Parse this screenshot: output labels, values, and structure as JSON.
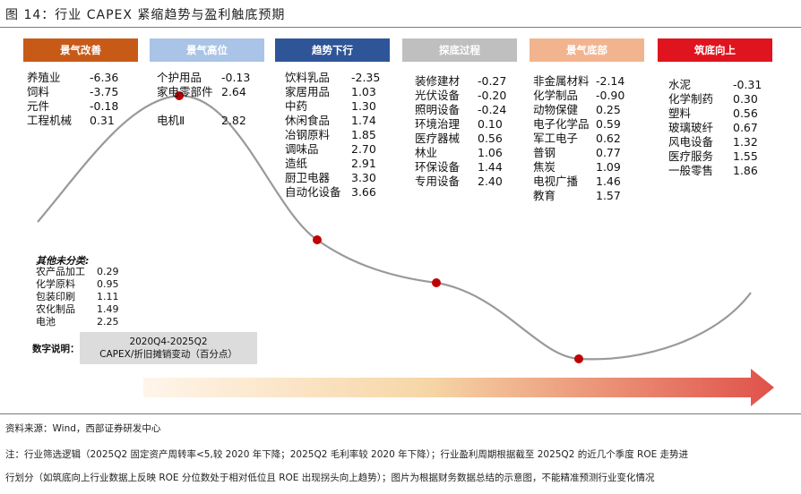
{
  "title": "图 14：行业 CAPEX 紧缩趋势与盈利触底预期",
  "phases": [
    {
      "label": "景气改善",
      "color": "#c85a17"
    },
    {
      "label": "景气高位",
      "color": "#a9c4e6"
    },
    {
      "label": "趋势下行",
      "color": "#2e5597"
    },
    {
      "label": "探底过程",
      "color": "#bfbfbf"
    },
    {
      "label": "景气底部",
      "color": "#f2b48f"
    },
    {
      "label": "筑底向上",
      "color": "#e0141e"
    }
  ],
  "columns": [
    {
      "items": [
        [
          "养殖业",
          "-6.36"
        ],
        [
          "饲料",
          "-3.75"
        ],
        [
          "元件",
          "-0.18"
        ],
        [
          "工程机械",
          "0.31"
        ]
      ]
    },
    {
      "items": [
        [
          "个护用品",
          "-0.13"
        ],
        [
          "家电零部件",
          "2.64"
        ],
        [
          "",
          ""
        ],
        [
          "电机Ⅱ",
          "2.82"
        ]
      ]
    },
    {
      "items": [
        [
          "饮料乳品",
          "-2.35"
        ],
        [
          "家居用品",
          "1.03"
        ],
        [
          "中药",
          "1.30"
        ],
        [
          "休闲食品",
          "1.74"
        ],
        [
          "冶钢原料",
          "1.85"
        ],
        [
          "调味品",
          "2.70"
        ],
        [
          "造纸",
          "2.91"
        ],
        [
          "厨卫电器",
          "3.30"
        ],
        [
          "自动化设备",
          "3.66"
        ]
      ]
    },
    {
      "items": [
        [
          "装修建材",
          "-0.27"
        ],
        [
          "光伏设备",
          "-0.20"
        ],
        [
          "照明设备",
          "-0.24"
        ],
        [
          "环境治理",
          "0.10"
        ],
        [
          "医疗器械",
          "0.56"
        ],
        [
          "林业",
          "1.06"
        ],
        [
          "环保设备",
          "1.44"
        ],
        [
          "专用设备",
          "2.40"
        ]
      ]
    },
    {
      "items": [
        [
          "非金属材料",
          "-2.14"
        ],
        [
          "化学制品",
          "-0.90"
        ],
        [
          "动物保健",
          "0.25"
        ],
        [
          "电子化学品",
          "0.59"
        ],
        [
          "军工电子",
          "0.62"
        ],
        [
          "普钢",
          "0.77"
        ],
        [
          "焦炭",
          "1.09"
        ],
        [
          "电视广播",
          "1.46"
        ],
        [
          "教育",
          "1.57"
        ]
      ]
    },
    {
      "items": [
        [
          "水泥",
          "-0.31"
        ],
        [
          "化学制药",
          "0.30"
        ],
        [
          "塑料",
          "0.56"
        ],
        [
          "玻璃玻纤",
          "0.67"
        ],
        [
          "风电设备",
          "1.32"
        ],
        [
          "医疗服务",
          "1.55"
        ],
        [
          "一般零售",
          "1.86"
        ]
      ]
    }
  ],
  "other": {
    "heading": "其他未分类:",
    "items": [
      [
        "农产品加工",
        "0.29"
      ],
      [
        "化学原料",
        "0.95"
      ],
      [
        "包装印刷",
        "1.11"
      ],
      [
        "农化制品",
        "1.49"
      ],
      [
        "电池",
        "2.25"
      ]
    ]
  },
  "legend": {
    "label": "数字说明：",
    "line1": "2020Q4-2025Q2",
    "line2": "CAPEX/折旧摊销变动（百分点）"
  },
  "source": "资料来源：Wind，西部证券研发中心",
  "note_line1": "注：行业筛选逻辑（2025Q2 固定资产周转率<5,较 2020 年下降；2025Q2 毛利率较 2020 年下降）；行业盈利周期根据截至 2025Q2 的近几个季度 ROE 走势进",
  "note_line2": "行划分（如筑底向上行业数据上反映 ROE 分位数处于相对低位且 ROE 出现拐头向上趋势）；图片为根据财务数据总结的示意图，不能精准预测行业变化情况",
  "colors": {
    "curve": "#999999",
    "dot": "#c00000",
    "arrow_start": "#fff5ea",
    "arrow_end": "#e0514a"
  }
}
